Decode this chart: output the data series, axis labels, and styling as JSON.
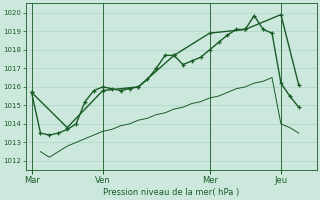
{
  "background_color": "#cce8dc",
  "grid_color": "#aad4c4",
  "line_color": "#1a5c28",
  "xlabel": "Pression niveau de la mer( hPa )",
  "ylim": [
    1011.5,
    1020.5
  ],
  "yticks": [
    1012,
    1013,
    1014,
    1015,
    1016,
    1017,
    1018,
    1019,
    1020
  ],
  "day_labels": [
    "Mar",
    "Ven",
    "Mer",
    "Jeu"
  ],
  "day_positions": [
    0,
    24,
    60,
    84
  ],
  "vline_positions": [
    0,
    24,
    60,
    84
  ],
  "xlim": [
    -2,
    96
  ],
  "line1_x": [
    0,
    3,
    6,
    9,
    12,
    15,
    18,
    21,
    24,
    27,
    30,
    33,
    36,
    39,
    42,
    45,
    48,
    51,
    54,
    57,
    60,
    63,
    66,
    69,
    72,
    75,
    78,
    81,
    84,
    87,
    90
  ],
  "line1_y": [
    1015.7,
    1013.5,
    1013.4,
    1013.5,
    1013.7,
    1014.0,
    1015.2,
    1015.8,
    1016.0,
    1015.9,
    1015.8,
    1015.9,
    1016.0,
    1016.4,
    1017.0,
    1017.7,
    1017.7,
    1017.2,
    1017.4,
    1017.6,
    1018.0,
    1018.4,
    1018.8,
    1019.1,
    1019.1,
    1019.85,
    1019.1,
    1018.9,
    1016.2,
    1015.5,
    1014.9
  ],
  "line2_x": [
    0,
    12,
    24,
    36,
    48,
    60,
    72,
    84,
    90
  ],
  "line2_y": [
    1015.7,
    1013.8,
    1015.8,
    1016.0,
    1017.7,
    1018.9,
    1019.1,
    1019.9,
    1016.1
  ],
  "line3_x": [
    3,
    6,
    9,
    12,
    15,
    18,
    21,
    24,
    27,
    30,
    33,
    36,
    39,
    42,
    45,
    48,
    51,
    54,
    57,
    60,
    63,
    66,
    69,
    72,
    75,
    78,
    81,
    84,
    87,
    90
  ],
  "line3_y": [
    1012.5,
    1012.2,
    1012.5,
    1012.8,
    1013.0,
    1013.2,
    1013.4,
    1013.6,
    1013.7,
    1013.9,
    1014.0,
    1014.2,
    1014.3,
    1014.5,
    1014.6,
    1014.8,
    1014.9,
    1015.1,
    1015.2,
    1015.4,
    1015.5,
    1015.7,
    1015.9,
    1016.0,
    1016.2,
    1016.3,
    1016.5,
    1014.0,
    1013.8,
    1013.5
  ]
}
